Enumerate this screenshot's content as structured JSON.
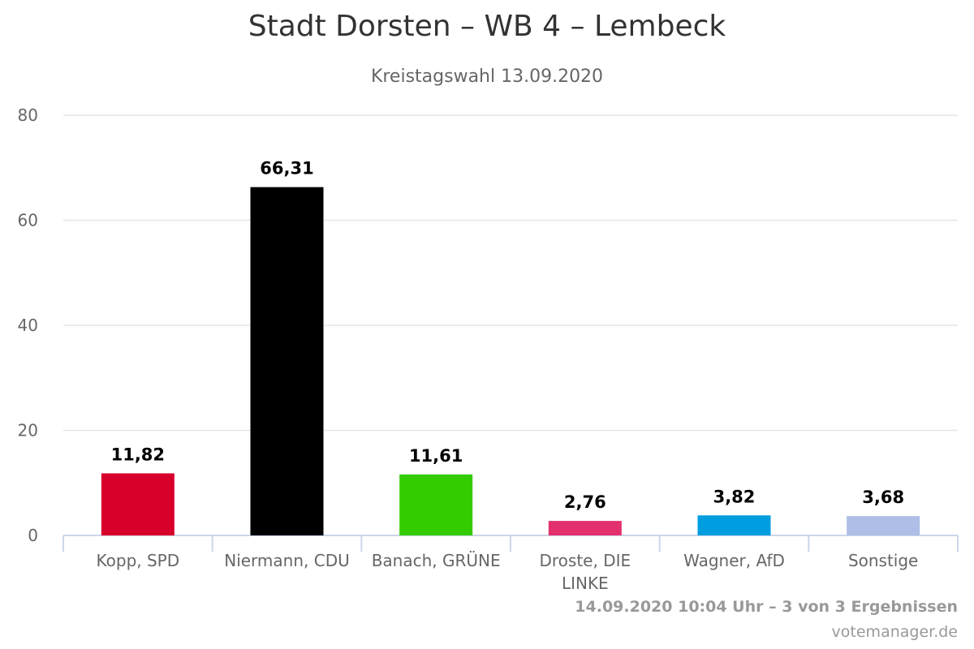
{
  "chart_data": {
    "type": "bar",
    "title": "Stadt Dorsten – WB 4 – Lembeck",
    "subtitle": "Kreistagswahl 13.09.2020",
    "xlabel": "",
    "ylabel": "",
    "categories": [
      "Kopp, SPD",
      "Niermann, CDU",
      "Banach, GRÜNE",
      "Droste, DIE LINKE",
      "Wagner, AfD",
      "Sonstige"
    ],
    "category_lines": [
      [
        "Kopp, SPD"
      ],
      [
        "Niermann, CDU"
      ],
      [
        "Banach, GRÜNE"
      ],
      [
        "Droste, DIE",
        "LINKE"
      ],
      [
        "Wagner, AfD"
      ],
      [
        "Sonstige"
      ]
    ],
    "values": [
      11.82,
      66.31,
      11.61,
      2.76,
      3.82,
      3.68
    ],
    "data_labels": [
      "11,82",
      "66,31",
      "11,61",
      "2,76",
      "3,82",
      "3,68"
    ],
    "colors": [
      "#d7002b",
      "#000000",
      "#33cc00",
      "#e3306e",
      "#009de0",
      "#aebee6"
    ],
    "ylim": [
      0,
      80
    ],
    "yticks": [
      0,
      20,
      40,
      60,
      80
    ],
    "grid": true,
    "legend": "none"
  },
  "footer": {
    "timestamp": "14.09.2020 10:04 Uhr – 3 von 3 Ergebnissen",
    "credits": "votemanager.de"
  }
}
